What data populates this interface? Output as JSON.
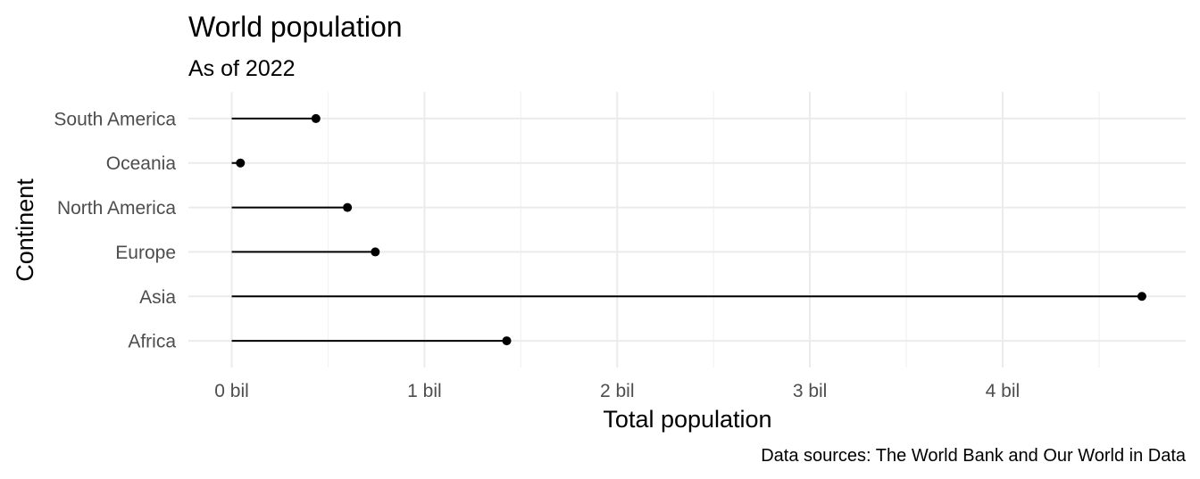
{
  "chart_data": {
    "type": "lollipop",
    "title": "World population",
    "subtitle": "As of 2022",
    "xlabel": "Total population",
    "ylabel": "Continent",
    "caption": "Data sources: The World Bank and Our World in Data",
    "categories": [
      "Africa",
      "Asia",
      "Europe",
      "North America",
      "Oceania",
      "South America"
    ],
    "values": [
      1426700000,
      4722600000,
      744800000,
      600300000,
      45000000,
      436800000
    ],
    "x_ticks": [
      0,
      1000000000,
      2000000000,
      3000000000,
      4000000000
    ],
    "x_tick_labels": [
      "0 bil",
      "1 bil",
      "2 bil",
      "3 bil",
      "4 bil"
    ],
    "xlim": [
      -225000000,
      4950000000
    ],
    "grid": true,
    "legend": "none",
    "colors": {
      "background": "#ffffff",
      "marks": "#000000",
      "grid": "#ebebeb",
      "tick_text": "#4d4d4d"
    }
  }
}
